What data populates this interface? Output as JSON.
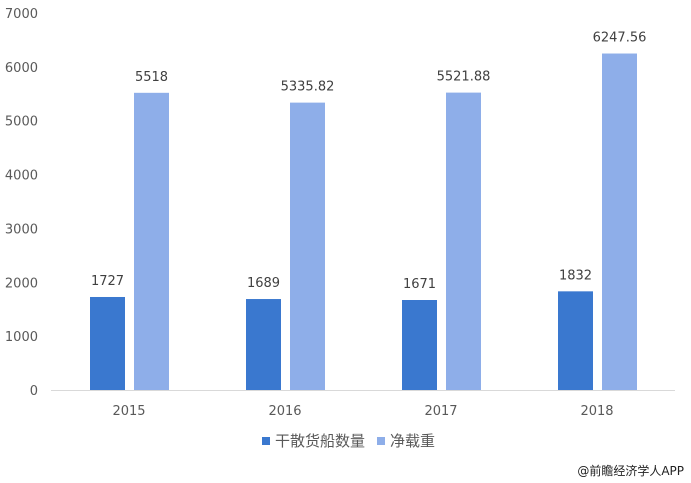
{
  "chart_data": {
    "type": "bar",
    "categories": [
      "2015",
      "2016",
      "2017",
      "2018"
    ],
    "series": [
      {
        "name": "干散货船数量",
        "values": [
          1727,
          1689,
          1671,
          1832
        ],
        "color": "#3a78cf"
      },
      {
        "name": "净载重",
        "values": [
          5518,
          5335.82,
          5521.88,
          6247.56
        ],
        "color": "#8eaee9"
      }
    ],
    "value_labels": [
      [
        "1727",
        "1689",
        "1671",
        "1832"
      ],
      [
        "5518",
        "5335.82",
        "5521.88",
        "6247.56"
      ]
    ],
    "yticks": [
      "0",
      "1000",
      "2000",
      "3000",
      "4000",
      "5000",
      "6000",
      "7000"
    ],
    "ylim": [
      0,
      7000
    ],
    "grid": false,
    "legend": "bottom"
  },
  "source": "@前瞻经济学人APP"
}
